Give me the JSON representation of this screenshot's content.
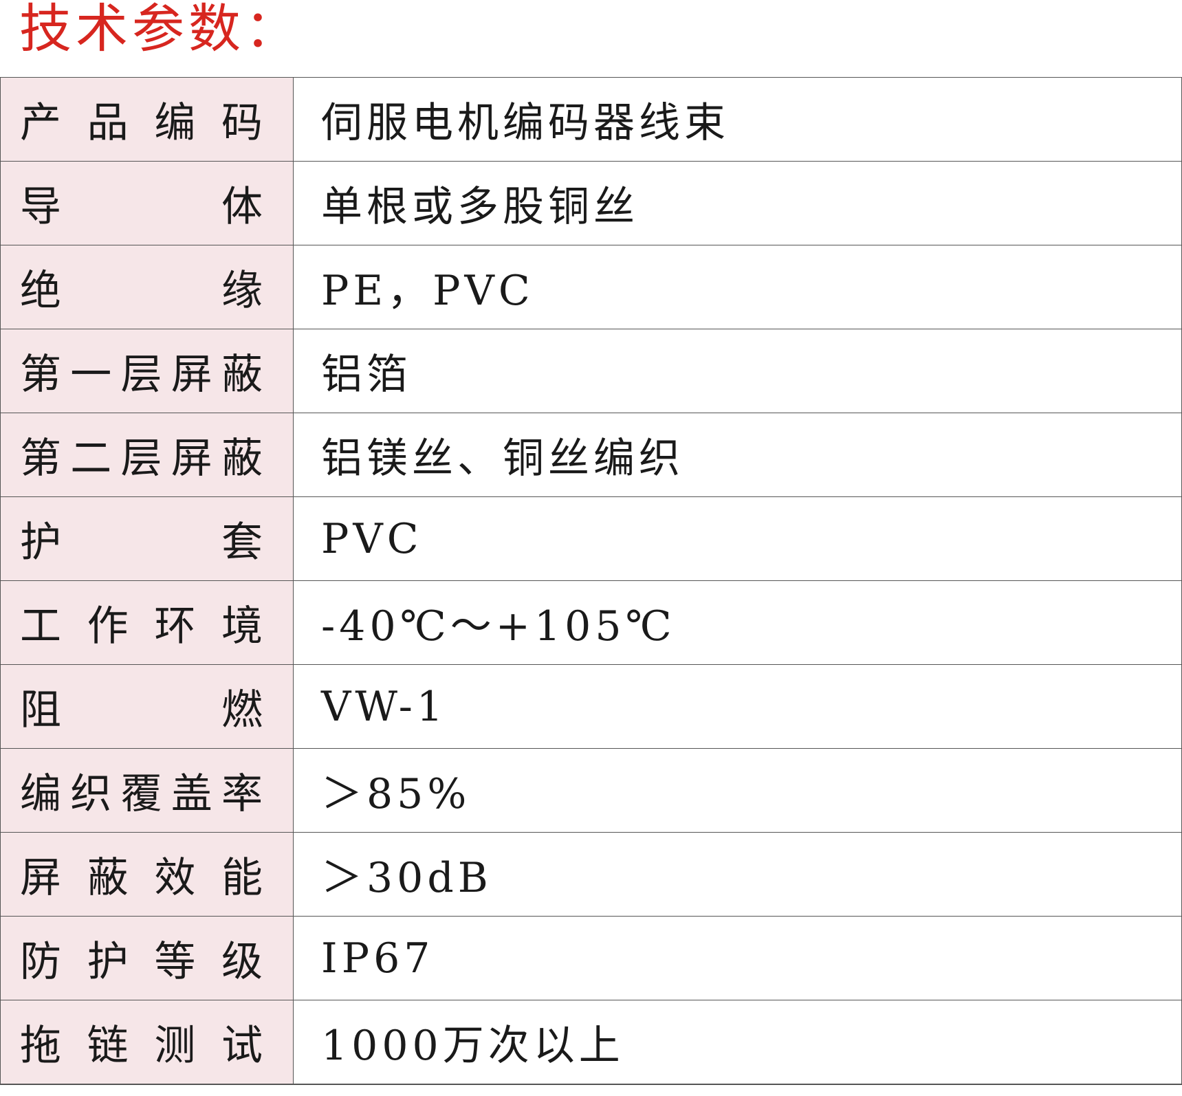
{
  "title": "技术参数：",
  "colors": {
    "title": "#d7261f",
    "label_bg": "#f6e6e8"
  },
  "rows": [
    {
      "label": "产品编码",
      "value": "伺服电机编码器线束"
    },
    {
      "label": "导体",
      "value": "单根或多股铜丝"
    },
    {
      "label": "绝缘",
      "value": "PE，PVC"
    },
    {
      "label": "第一层屏蔽",
      "value": "铝箔"
    },
    {
      "label": "第二层屏蔽",
      "value": "铝镁丝、铜丝编织"
    },
    {
      "label": "护套",
      "value": "PVC"
    },
    {
      "label": "工作环境",
      "value": "-40℃～+105℃"
    },
    {
      "label": "阻燃",
      "value": "VW-1"
    },
    {
      "label": "编织覆盖率",
      "value": "＞85%"
    },
    {
      "label": "屏蔽效能",
      "value": "＞30dB"
    },
    {
      "label": "防护等级",
      "value": "IP67"
    },
    {
      "label": "拖链测试",
      "value": "1000万次以上"
    }
  ]
}
